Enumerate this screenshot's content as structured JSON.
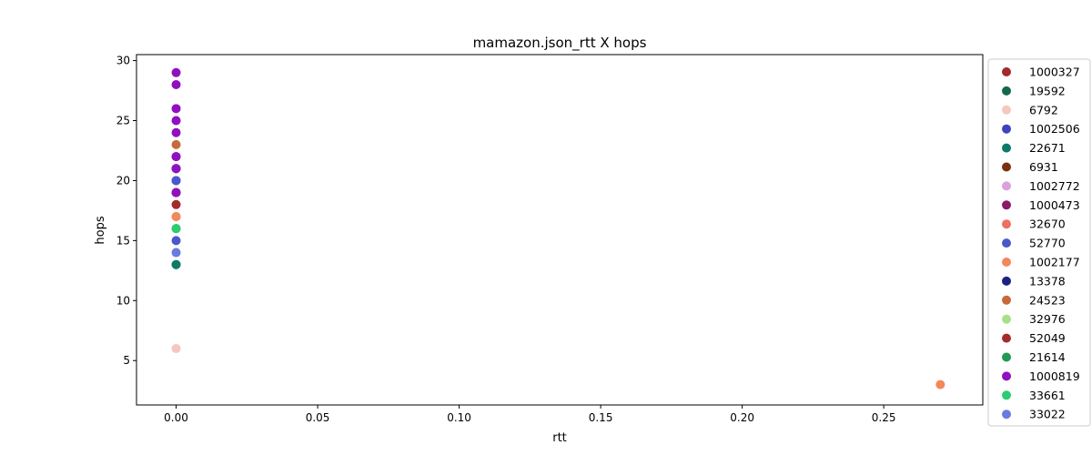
{
  "chart_data": {
    "type": "scatter",
    "title": "mamazon.json_rtt X hops",
    "xlabel": "rtt",
    "ylabel": "hops",
    "xlim": [
      -0.014,
      0.285
    ],
    "ylim": [
      1.3,
      30.5
    ],
    "xticks": [
      0.0,
      0.05,
      0.1,
      0.15,
      0.2,
      0.25
    ],
    "xtick_labels": [
      "0.00",
      "0.05",
      "0.10",
      "0.15",
      "0.20",
      "0.25"
    ],
    "yticks": [
      5,
      10,
      15,
      20,
      25,
      30
    ],
    "ytick_labels": [
      "5",
      "10",
      "15",
      "20",
      "25",
      "30"
    ],
    "grid": false,
    "legend_position": "outside-right",
    "series": [
      {
        "name": "1000327",
        "color": "#a32a2a",
        "points": [
          [
            0,
            19
          ],
          [
            0,
            21
          ]
        ]
      },
      {
        "name": "19592",
        "color": "#17684a",
        "points": [
          [
            0,
            13
          ]
        ]
      },
      {
        "name": "6792",
        "color": "#f5c7c1",
        "points": [
          [
            0,
            6
          ]
        ]
      },
      {
        "name": "1002506",
        "color": "#4040c0",
        "points": [
          [
            0,
            20
          ]
        ]
      },
      {
        "name": "22671",
        "color": "#0b7a66",
        "points": [
          [
            0,
            13
          ]
        ]
      },
      {
        "name": "6931",
        "color": "#7a3010",
        "points": [
          [
            0,
            19
          ]
        ]
      },
      {
        "name": "1002772",
        "color": "#dda0dd",
        "points": [
          [
            0,
            25
          ]
        ]
      },
      {
        "name": "1000473",
        "color": "#8b1a6b",
        "points": [
          [
            0,
            19
          ],
          [
            0,
            22
          ]
        ]
      },
      {
        "name": "32670",
        "color": "#ee7060",
        "points": [
          [
            0,
            17
          ]
        ]
      },
      {
        "name": "52770",
        "color": "#4a58cc",
        "points": [
          [
            0,
            15
          ],
          [
            0,
            20
          ]
        ]
      },
      {
        "name": "1002177",
        "color": "#f4885a",
        "points": [
          [
            0,
            17
          ],
          [
            0.27,
            3
          ]
        ]
      },
      {
        "name": "13378",
        "color": "#1a237e",
        "points": [
          [
            0,
            21
          ]
        ]
      },
      {
        "name": "24523",
        "color": "#c66a3a",
        "points": [
          [
            0,
            23
          ]
        ]
      },
      {
        "name": "32976",
        "color": "#a8e08a",
        "points": [
          [
            0,
            14
          ]
        ]
      },
      {
        "name": "52049",
        "color": "#a52a2a",
        "points": [
          [
            0,
            18
          ]
        ]
      },
      {
        "name": "21614",
        "color": "#229954",
        "points": [
          [
            0,
            16
          ]
        ]
      },
      {
        "name": "1000819",
        "color": "#9010c0",
        "points": [
          [
            0,
            29
          ],
          [
            0,
            28
          ],
          [
            0,
            26
          ],
          [
            0,
            25
          ],
          [
            0,
            24
          ],
          [
            0,
            22
          ],
          [
            0,
            21
          ],
          [
            0,
            19
          ]
        ]
      },
      {
        "name": "33661",
        "color": "#2ecc71",
        "points": [
          [
            0,
            16
          ]
        ]
      },
      {
        "name": "33022",
        "color": "#6a7be0",
        "points": [
          [
            0,
            14
          ]
        ]
      }
    ]
  }
}
